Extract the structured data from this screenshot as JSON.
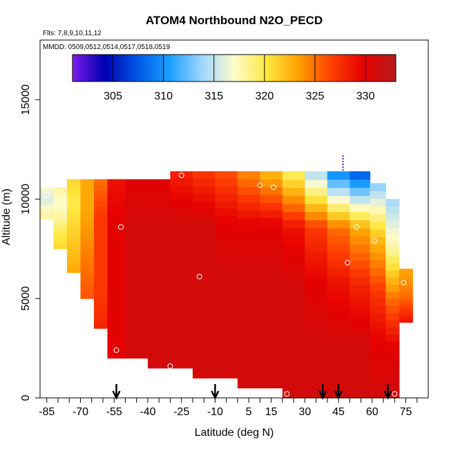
{
  "chart_data": {
    "type": "heatmap",
    "title": "ATOM4 Northbound N2O_PECD",
    "flights_note": "Flts: 7,8,9,10,11,12",
    "dates_note": "MMDD: 0509,0512,0514,0517,0518,0519",
    "xlabel": "Latitude (deg N)",
    "ylabel": "Altitude (m)",
    "xlim": [
      -88,
      85
    ],
    "ylim": [
      0,
      18000
    ],
    "x_tick_labels": [
      "-85",
      "-70",
      "-55",
      "-40",
      "-25",
      "-10",
      "5",
      "15",
      "30",
      "45",
      "60",
      "75"
    ],
    "x_tick_values": [
      -85,
      -70,
      -55,
      -40,
      -25,
      -10,
      5,
      15,
      30,
      45,
      60,
      75
    ],
    "y_tick_labels": [
      "0",
      "5000",
      "10000",
      "15000"
    ],
    "y_tick_values": [
      0,
      5000,
      10000,
      15000
    ],
    "colorbar": {
      "min": 301,
      "max": 333,
      "tick_labels": [
        "305",
        "310",
        "315",
        "320",
        "325",
        "330"
      ],
      "tick_values": [
        305,
        310,
        315,
        320,
        325,
        330
      ],
      "colors": [
        "#7a1ee6",
        "#0000b3",
        "#0055e6",
        "#1aa0ff",
        "#9ed6ff",
        "#fdfbcc",
        "#ffe840",
        "#ffa000",
        "#ff4000",
        "#e60000",
        "#b31b1b"
      ]
    },
    "profile_columns": [
      {
        "lat": -85,
        "alt_min": 9000,
        "alt_max": 10600,
        "values": [
          318,
          318,
          316,
          316,
          317
        ]
      },
      {
        "lat": -79,
        "alt_min": 7500,
        "alt_max": 10600,
        "values": [
          321,
          320,
          318,
          317,
          318
        ]
      },
      {
        "lat": -73,
        "alt_min": 6300,
        "alt_max": 11000,
        "values": [
          323,
          322,
          321,
          320,
          321
        ]
      },
      {
        "lat": -67,
        "alt_min": 5000,
        "alt_max": 11000,
        "values": [
          326,
          325,
          324,
          323,
          323
        ]
      },
      {
        "lat": -61,
        "alt_min": 3500,
        "alt_max": 11000,
        "values": [
          328,
          327,
          327,
          327,
          325
        ]
      },
      {
        "lat": -55,
        "alt_min": 2000,
        "alt_max": 11000,
        "values": [
          330,
          330,
          330,
          330,
          329
        ]
      },
      {
        "lat": -45,
        "alt_min": 2000,
        "alt_max": 11000,
        "values": [
          331,
          331,
          331,
          331,
          330
        ]
      },
      {
        "lat": -35,
        "alt_min": 1500,
        "alt_max": 11000,
        "values": [
          331,
          331,
          331,
          331,
          330
        ]
      },
      {
        "lat": -25,
        "alt_min": 1500,
        "alt_max": 11400,
        "values": [
          331,
          331,
          331,
          331,
          328
        ]
      },
      {
        "lat": -15,
        "alt_min": 1000,
        "alt_max": 11400,
        "values": [
          331,
          331,
          331,
          331,
          327
        ]
      },
      {
        "lat": -5,
        "alt_min": 1000,
        "alt_max": 11400,
        "values": [
          331,
          331,
          331,
          330,
          326
        ]
      },
      {
        "lat": 5,
        "alt_min": 500,
        "alt_max": 11400,
        "values": [
          331,
          331,
          331,
          330,
          324
        ]
      },
      {
        "lat": 15,
        "alt_min": 500,
        "alt_max": 11400,
        "values": [
          331,
          331,
          331,
          330,
          322
        ]
      },
      {
        "lat": 25,
        "alt_min": 0,
        "alt_max": 11400,
        "values": [
          331,
          331,
          331,
          329,
          319
        ]
      },
      {
        "lat": 35,
        "alt_min": 0,
        "alt_max": 11400,
        "values": [
          331,
          331,
          330,
          327,
          314
        ]
      },
      {
        "lat": 45,
        "alt_min": 0,
        "alt_max": 11400,
        "values": [
          331,
          331,
          329,
          325,
          309
        ]
      },
      {
        "lat": 55,
        "alt_min": 0,
        "alt_max": 11400,
        "values": [
          331,
          331,
          328,
          323,
          307
        ]
      },
      {
        "lat": 63,
        "alt_min": 0,
        "alt_max": 10800,
        "values": [
          331,
          330,
          327,
          322,
          313
        ]
      },
      {
        "lat": 69,
        "alt_min": 0,
        "alt_max": 10000,
        "values": [
          331,
          330,
          325,
          318,
          314
        ]
      },
      {
        "lat": 75,
        "alt_min": 3800,
        "alt_max": 6500,
        "values": [
          329,
          327,
          325,
          324,
          323
        ]
      }
    ],
    "sample_points": [
      {
        "lat": -85,
        "alt": 10200
      },
      {
        "lat": -85,
        "alt": 9300
      },
      {
        "lat": -52,
        "alt": 8600
      },
      {
        "lat": -54,
        "alt": 2400
      },
      {
        "lat": -30,
        "alt": 1600
      },
      {
        "lat": -25,
        "alt": 11200
      },
      {
        "lat": -17,
        "alt": 6100
      },
      {
        "lat": 10,
        "alt": 10700
      },
      {
        "lat": 16,
        "alt": 10600
      },
      {
        "lat": 22,
        "alt": 200
      },
      {
        "lat": 49,
        "alt": 6800
      },
      {
        "lat": 53,
        "alt": 8600
      },
      {
        "lat": 61,
        "alt": 7900
      },
      {
        "lat": 69,
        "alt": 10800
      },
      {
        "lat": 70,
        "alt": 200
      },
      {
        "lat": 74,
        "alt": 5800
      }
    ],
    "flight_marker": {
      "lat": 47,
      "alt_min": 11400,
      "alt_max": 12200
    },
    "arrow_latitudes": [
      -54,
      -10,
      38,
      45,
      67
    ]
  }
}
